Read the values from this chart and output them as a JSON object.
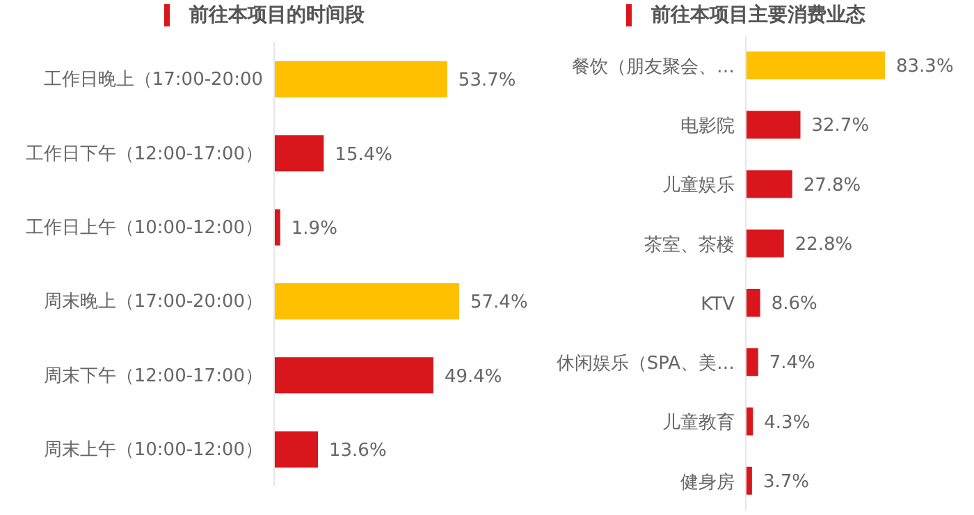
{
  "chart_data": [
    {
      "type": "bar",
      "orientation": "horizontal",
      "title": "前往本项目的时间段",
      "categories": [
        "工作日晚上（17:00-20:00",
        "工作日下午（12:00-17:00）",
        "工作日上午（10:00-12:00）",
        "周末晚上（17:00-20:00）",
        "周末下午（12:00-17:00）",
        "周末上午（10:00-12:00）"
      ],
      "values": [
        53.7,
        15.4,
        1.9,
        57.4,
        49.4,
        13.6
      ],
      "value_labels": [
        "53.7%",
        "15.4%",
        "1.9%",
        "57.4%",
        "49.4%",
        "13.6%"
      ],
      "colors": [
        "#ffc000",
        "#d9161c",
        "#d9161c",
        "#ffc000",
        "#d9161c",
        "#d9161c"
      ],
      "tick_labels": "y",
      "grid": false,
      "legend": false
    },
    {
      "type": "bar",
      "orientation": "horizontal",
      "title": "前往本项目主要消费业态",
      "categories": [
        "餐饮（朋友聚会、…",
        "电影院",
        "儿童娱乐",
        "茶室、茶楼",
        "KTV",
        "休闲娱乐（SPA、美…",
        "儿童教育",
        "健身房"
      ],
      "values": [
        83.3,
        32.7,
        27.8,
        22.8,
        8.6,
        7.4,
        4.3,
        3.7
      ],
      "value_labels": [
        "83.3%",
        "32.7%",
        "27.8%",
        "22.8%",
        "8.6%",
        "7.4%",
        "4.3%",
        "3.7%"
      ],
      "colors": [
        "#ffc000",
        "#d9161c",
        "#d9161c",
        "#d9161c",
        "#d9161c",
        "#d9161c",
        "#d9161c",
        "#d9161c"
      ],
      "tick_labels": "y",
      "grid": false,
      "legend": false
    }
  ]
}
